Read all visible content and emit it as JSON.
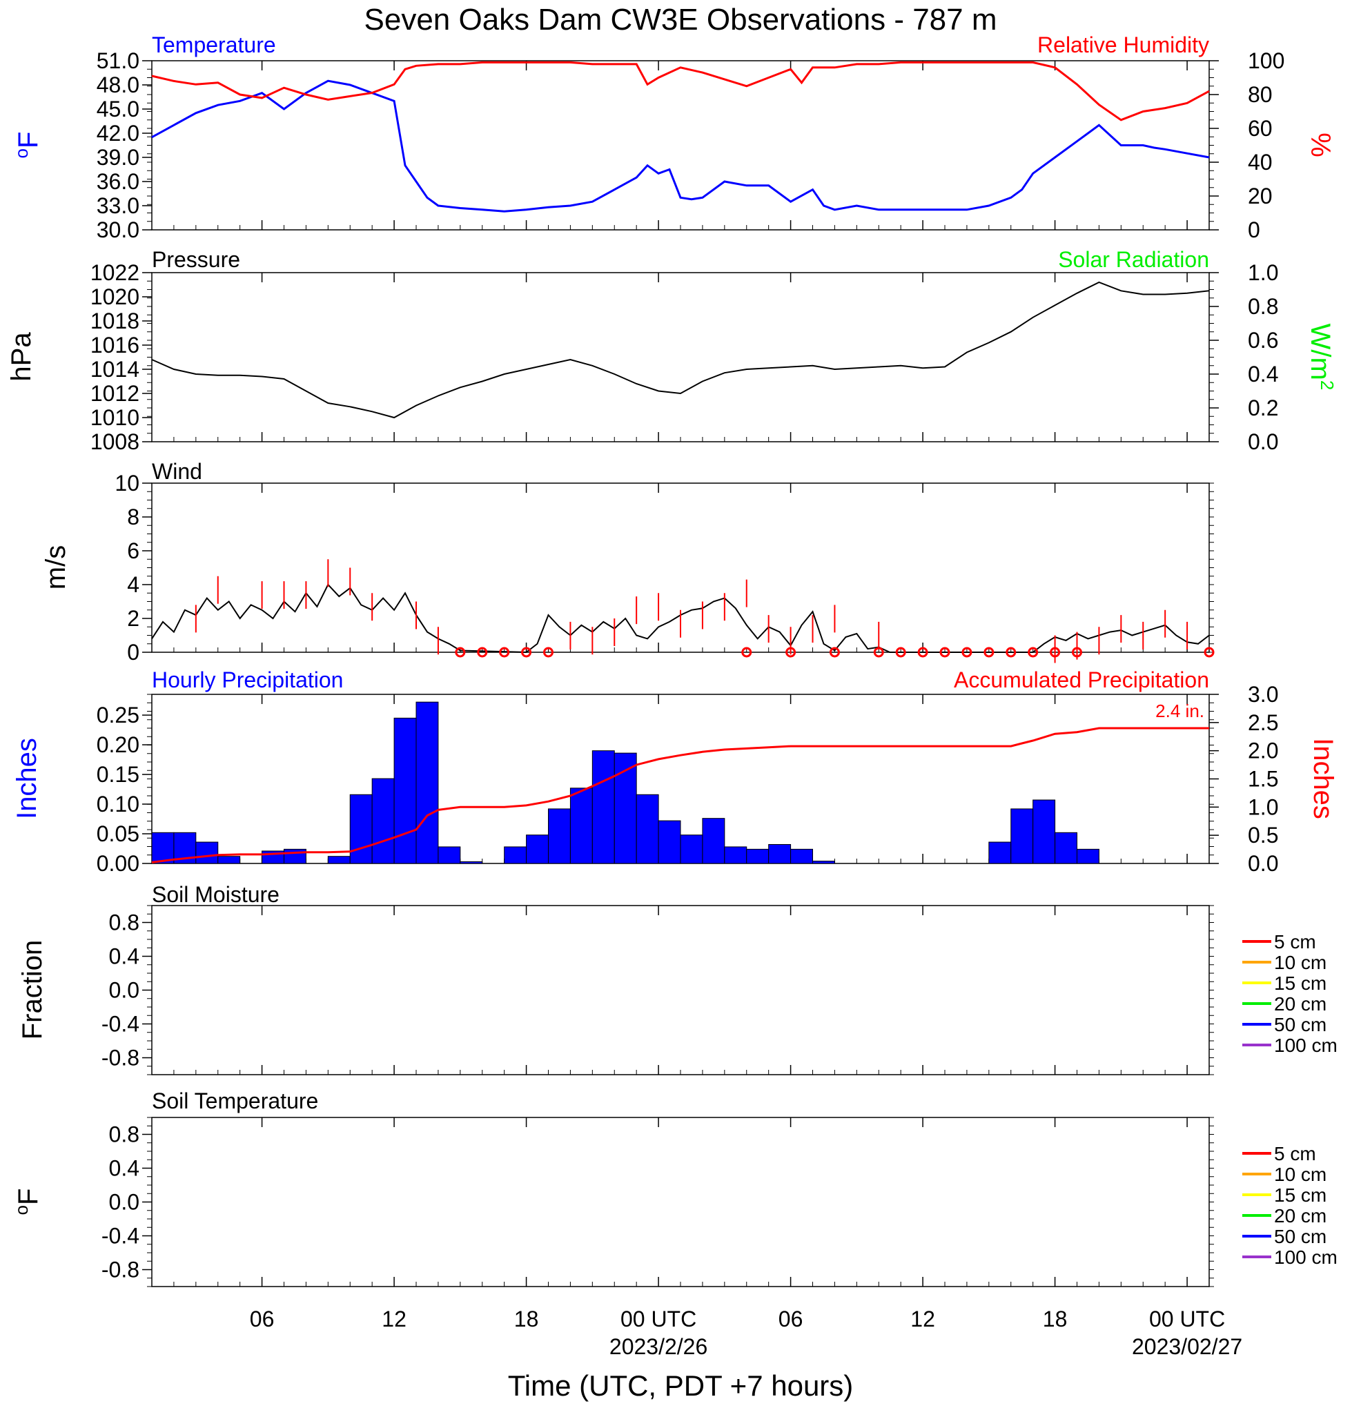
{
  "title": "Seven Oaks Dam CW3E Observations - 787 m",
  "xaxis": {
    "label": "Time (UTC, PDT +7 hours)",
    "range_hours": [
      1,
      49
    ],
    "tick_hours": [
      6,
      12,
      18,
      24,
      30,
      36,
      42,
      48
    ],
    "tick_labels": [
      "06",
      "12",
      "18",
      "00 UTC",
      "06",
      "12",
      "18",
      "00 UTC"
    ],
    "date_labels": [
      {
        "hour": 24,
        "text": "2023/2/26"
      },
      {
        "hour": 48,
        "text": "2023/02/27"
      }
    ]
  },
  "colors": {
    "blue": "#0000ff",
    "red": "#ff0000",
    "green": "#00ee00",
    "black": "#000000"
  },
  "chart_data": [
    {
      "type": "line",
      "id": "temp_rh",
      "title_left": "Temperature",
      "title_right": "Relative Humidity",
      "ylabel_left": "oF",
      "ylabel_right": "%",
      "ylim_left": [
        30,
        51
      ],
      "yticks_left": [
        "30.0",
        "33.0",
        "36.0",
        "39.0",
        "42.0",
        "45.0",
        "48.0",
        "51.0"
      ],
      "ylim_right": [
        0,
        100
      ],
      "yticks_right": [
        "0",
        "20",
        "40",
        "60",
        "80",
        "100"
      ],
      "series": [
        {
          "name": "Temperature",
          "axis": "left",
          "color": "#0000ff",
          "x": [
            1,
            2,
            3,
            4,
            5,
            6,
            7,
            8,
            9,
            10,
            11,
            12,
            12.5,
            13,
            13.5,
            14,
            15,
            16,
            17,
            18,
            19,
            20,
            21,
            22,
            23,
            23.5,
            24,
            24.5,
            25,
            25.5,
            26,
            27,
            28,
            29,
            30,
            31,
            31.5,
            32,
            33,
            34,
            35,
            36,
            37,
            38,
            39,
            40,
            40.5,
            41,
            42,
            43,
            43.5,
            44,
            45,
            46,
            46.5,
            47,
            48,
            49
          ],
          "y": [
            41.5,
            43,
            44.5,
            45.5,
            46,
            47,
            45,
            47,
            48.5,
            48,
            47,
            46,
            38,
            36,
            34,
            33,
            32.7,
            32.5,
            32.3,
            32.5,
            32.8,
            33,
            33.5,
            35,
            36.5,
            38,
            37,
            37.5,
            34,
            33.8,
            34,
            36,
            35.5,
            35.5,
            33.5,
            35,
            33,
            32.5,
            33,
            32.5,
            32.5,
            32.5,
            32.5,
            32.5,
            33,
            34,
            35,
            37,
            39,
            41,
            42,
            43,
            40.5,
            40.5,
            40.2,
            40,
            39.5,
            39
          ]
        },
        {
          "name": "Relative Humidity",
          "axis": "right",
          "color": "#ff0000",
          "x": [
            1,
            2,
            3,
            4,
            5,
            6,
            7,
            8,
            9,
            10,
            11,
            12,
            12.5,
            13,
            14,
            15,
            16,
            17,
            18,
            19,
            20,
            21,
            22,
            23,
            23.5,
            24,
            25,
            26,
            27,
            28,
            29,
            30,
            30.5,
            31,
            32,
            33,
            34,
            35,
            36,
            37,
            38,
            39,
            40,
            40.5,
            41,
            42,
            43,
            43.5,
            44,
            45,
            46,
            47,
            48,
            49
          ],
          "y": [
            91,
            88,
            86,
            87,
            80,
            78,
            84,
            80,
            77,
            79,
            81,
            86,
            95,
            97,
            98,
            98,
            99,
            99,
            99,
            99,
            99,
            98,
            98,
            98,
            86,
            90,
            96,
            93,
            89,
            85,
            90,
            95,
            87,
            96,
            96,
            98,
            98,
            99,
            99,
            99,
            99,
            99,
            99,
            99,
            99,
            96,
            86,
            80,
            74,
            65,
            70,
            72,
            75,
            82
          ]
        }
      ]
    },
    {
      "type": "line",
      "id": "pressure",
      "title_left": "Pressure",
      "title_right": "Solar Radiation",
      "ylabel_left": "hPa",
      "ylabel_right": "W/m2",
      "ylim_left": [
        1008,
        1022
      ],
      "yticks_left": [
        "1008",
        "1010",
        "1012",
        "1014",
        "1016",
        "1018",
        "1020",
        "1022"
      ],
      "ylim_right": [
        0,
        1
      ],
      "yticks_right": [
        "0.0",
        "0.2",
        "0.4",
        "0.6",
        "0.8",
        "1.0"
      ],
      "series": [
        {
          "name": "Pressure",
          "axis": "left",
          "color": "#000000",
          "x": [
            1,
            2,
            3,
            4,
            5,
            6,
            7,
            8,
            9,
            10,
            11,
            12,
            13,
            14,
            15,
            16,
            17,
            18,
            19,
            20,
            21,
            22,
            23,
            24,
            25,
            26,
            27,
            28,
            29,
            30,
            31,
            32,
            33,
            34,
            35,
            36,
            37,
            38,
            39,
            40,
            41,
            42,
            43,
            44,
            45,
            46,
            47,
            48,
            49
          ],
          "y": [
            1014.8,
            1014,
            1013.6,
            1013.5,
            1013.5,
            1013.4,
            1013.2,
            1012.2,
            1011.2,
            1010.9,
            1010.5,
            1010,
            1011,
            1011.8,
            1012.5,
            1013,
            1013.6,
            1014,
            1014.4,
            1014.8,
            1014.3,
            1013.6,
            1012.8,
            1012.2,
            1012,
            1013,
            1013.7,
            1014,
            1014.1,
            1014.2,
            1014.3,
            1014,
            1014.1,
            1014.2,
            1014.3,
            1014.1,
            1014.2,
            1015.4,
            1016.2,
            1017.1,
            1018.3,
            1019.3,
            1020.3,
            1021.2,
            1020.5,
            1020.2,
            1020.2,
            1020.3,
            1020.5
          ]
        }
      ]
    },
    {
      "type": "line",
      "id": "wind",
      "title_left": "Wind",
      "ylabel_left": "m/s",
      "ylim_left": [
        0,
        10
      ],
      "yticks_left": [
        "0",
        "2",
        "4",
        "6",
        "8",
        "10"
      ],
      "series": [
        {
          "name": "Wind",
          "axis": "left",
          "color": "#000000",
          "x": [
            1,
            1.5,
            2,
            2.5,
            3,
            3.5,
            4,
            4.5,
            5,
            5.5,
            6,
            6.5,
            7,
            7.5,
            8,
            8.5,
            9,
            9.5,
            10,
            10.5,
            11,
            11.5,
            12,
            12.5,
            13,
            13.5,
            14,
            14.5,
            15,
            18,
            18.5,
            19,
            19.5,
            20,
            20.5,
            21,
            21.5,
            22,
            22.5,
            23,
            23.5,
            24,
            24.5,
            25,
            25.5,
            26,
            26.5,
            27,
            27.5,
            28,
            28.5,
            29,
            29.5,
            30,
            30.5,
            31,
            31.5,
            32,
            32.5,
            33,
            33.5,
            34,
            34.5,
            35,
            41,
            41.5,
            42,
            42.5,
            43,
            43.5,
            44,
            44.5,
            45,
            45.5,
            46,
            46.5,
            47,
            47.5,
            48,
            48.5,
            49
          ],
          "y": [
            0.8,
            1.8,
            1.2,
            2.5,
            2.2,
            3.2,
            2.5,
            3,
            2,
            2.8,
            2.5,
            2,
            3,
            2.4,
            3.5,
            2.7,
            4,
            3.3,
            3.8,
            2.8,
            2.5,
            3.2,
            2.5,
            3.5,
            2.2,
            1.2,
            0.8,
            0.5,
            0.1,
            0,
            0.5,
            2.2,
            1.5,
            1,
            1.6,
            1.2,
            1.8,
            1.4,
            2,
            1,
            0.8,
            1.5,
            1.8,
            2.2,
            2.5,
            2.6,
            3,
            3.2,
            2.6,
            1.6,
            0.8,
            1.5,
            1.2,
            0.4,
            1.6,
            2.4,
            0.5,
            0.1,
            0.9,
            1.1,
            0.2,
            0.3,
            0,
            0,
            0,
            0.5,
            0.9,
            0.7,
            1.1,
            0.8,
            1,
            1.2,
            1.3,
            1,
            1.2,
            1.4,
            1.6,
            1,
            0.6,
            0.5,
            1
          ]
        },
        {
          "name": "Wind barbs",
          "axis": "left",
          "color": "#ff0000",
          "calm_hours": [
            15,
            16,
            17,
            18,
            19,
            28,
            30,
            32,
            34,
            35,
            36,
            37,
            38,
            39,
            40,
            41,
            42,
            43,
            49
          ],
          "barb_hours": [
            3,
            4,
            6,
            7,
            8,
            9,
            10,
            11,
            13,
            14,
            20,
            21,
            22,
            23,
            24,
            25,
            26,
            27,
            28,
            29,
            30,
            31,
            32,
            34,
            42,
            43,
            44,
            45,
            46,
            47,
            48
          ],
          "barb_values": [
            2.8,
            4.5,
            4.2,
            4.2,
            4.2,
            5.5,
            5,
            3.5,
            3,
            1.5,
            1.8,
            1.5,
            2,
            3.3,
            3.5,
            2.5,
            3,
            3.5,
            4.3,
            2.2,
            1.5,
            2.2,
            2.8,
            1.8,
            1,
            1.2,
            1.5,
            2.2,
            1.8,
            2.5,
            1.8
          ]
        }
      ]
    },
    {
      "type": "bar",
      "id": "precip",
      "title_left": "Hourly Precipitation",
      "title_right": "Accumulated Precipitation",
      "annotation": "2.4 in.",
      "ylabel_left": "Inches",
      "ylabel_right": "Inches",
      "ylim_left": [
        0,
        0.285
      ],
      "yticks_left": [
        "0.00",
        "0.05",
        "0.10",
        "0.15",
        "0.20",
        "0.25"
      ],
      "ylim_right": [
        0,
        3
      ],
      "yticks_right": [
        "0.0",
        "0.5",
        "1.0",
        "1.5",
        "2.0",
        "2.5",
        "3.0"
      ],
      "series": [
        {
          "name": "Hourly Precipitation",
          "axis": "left",
          "color": "#0000ff",
          "x": [
            1,
            2,
            3,
            4,
            5,
            6,
            7,
            8,
            9,
            10,
            11,
            12,
            13,
            14,
            15,
            16,
            17,
            18,
            19,
            20,
            21,
            22,
            23,
            24,
            25,
            26,
            27,
            28,
            29,
            30,
            31,
            32,
            33,
            34,
            35,
            36,
            37,
            38,
            39,
            40,
            41,
            42,
            43,
            44,
            45,
            46,
            47,
            48
          ],
          "values": [
            0.052,
            0.052,
            0.036,
            0.012,
            0,
            0.021,
            0.024,
            0,
            0.012,
            0.116,
            0.143,
            0.245,
            0.272,
            0.028,
            0.003,
            0,
            0.028,
            0.048,
            0.092,
            0.127,
            0.19,
            0.186,
            0.116,
            0.072,
            0.048,
            0.076,
            0.028,
            0.024,
            0.032,
            0.024,
            0.004,
            0,
            0,
            0,
            0,
            0,
            0,
            0,
            0.036,
            0.092,
            0.107,
            0.052,
            0.024,
            0,
            0,
            0,
            0,
            0
          ]
        },
        {
          "name": "Accumulated Precipitation",
          "axis": "right",
          "color": "#ff0000",
          "x": [
            1,
            2,
            3,
            4,
            5,
            6,
            7,
            8,
            9,
            10,
            11,
            12,
            13,
            13.5,
            14,
            15,
            16,
            17,
            18,
            19,
            20,
            21,
            22,
            23,
            24,
            25,
            26,
            27,
            28,
            29,
            30,
            31,
            32,
            33,
            34,
            35,
            36,
            37,
            38,
            39,
            40,
            40.5,
            41,
            42,
            43,
            44,
            45,
            46,
            47,
            48,
            49
          ],
          "y": [
            0.02,
            0.07,
            0.11,
            0.15,
            0.16,
            0.16,
            0.18,
            0.2,
            0.2,
            0.21,
            0.33,
            0.46,
            0.6,
            0.85,
            0.95,
            1,
            1,
            1,
            1.03,
            1.1,
            1.2,
            1.37,
            1.55,
            1.75,
            1.85,
            1.92,
            1.98,
            2.02,
            2.04,
            2.06,
            2.08,
            2.08,
            2.08,
            2.08,
            2.08,
            2.08,
            2.08,
            2.08,
            2.08,
            2.08,
            2.08,
            2.13,
            2.18,
            2.3,
            2.33,
            2.4,
            2.4,
            2.4,
            2.4,
            2.4,
            2.4
          ]
        }
      ]
    },
    {
      "type": "line",
      "id": "soil_moisture",
      "title_left": "Soil Moisture",
      "ylabel_left": "Fraction",
      "ylim_left": [
        -1,
        1
      ],
      "yticks_left": [
        "-0.8",
        "-0.4",
        "0.0",
        "0.4",
        "0.8"
      ],
      "series": [
        {
          "name": "5 cm",
          "color": "#ff0000",
          "values": []
        },
        {
          "name": "10 cm",
          "color": "#ffa500",
          "values": []
        },
        {
          "name": "15 cm",
          "color": "#ffff00",
          "values": []
        },
        {
          "name": "20 cm",
          "color": "#00ee00",
          "values": []
        },
        {
          "name": "50 cm",
          "color": "#0000ff",
          "values": []
        },
        {
          "name": "100 cm",
          "color": "#9932cc",
          "values": []
        }
      ]
    },
    {
      "type": "line",
      "id": "soil_temperature",
      "title_left": "Soil Temperature",
      "ylabel_left": "oF",
      "ylim_left": [
        -1,
        1
      ],
      "yticks_left": [
        "-0.8",
        "-0.4",
        "0.0",
        "0.4",
        "0.8"
      ],
      "series": [
        {
          "name": "5 cm",
          "color": "#ff0000",
          "values": []
        },
        {
          "name": "10 cm",
          "color": "#ffa500",
          "values": []
        },
        {
          "name": "15 cm",
          "color": "#ffff00",
          "values": []
        },
        {
          "name": "20 cm",
          "color": "#00ee00",
          "values": []
        },
        {
          "name": "50 cm",
          "color": "#0000ff",
          "values": []
        },
        {
          "name": "100 cm",
          "color": "#9932cc",
          "values": []
        }
      ]
    }
  ]
}
